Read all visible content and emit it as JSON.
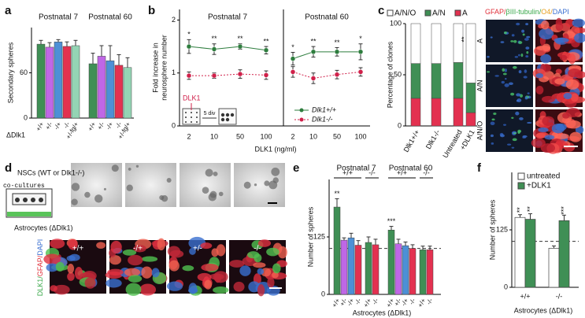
{
  "panel_labels": [
    "a",
    "b",
    "c",
    "d",
    "e",
    "f"
  ],
  "panel_c_images": {
    "stain": [
      "GFAP/",
      "βIII-tubulin/",
      "O4/",
      "DAPI"
    ],
    "rows": [
      "A",
      "A/N",
      "A/N/O"
    ]
  },
  "panel_d_images": {
    "nscs": "NSCs (WT or Dlk1-/-)",
    "coculture": "co-cultures",
    "astrocytes": "Astrocytes (ΔDlk1)",
    "genotypes": [
      "+/+",
      "-/+",
      "+/-",
      "-/-"
    ],
    "stain": [
      "DLK1/",
      "GFAP/",
      "DAPI"
    ]
  },
  "chart_data": [
    {
      "type": "bar",
      "ylabel": "Secondary spheres",
      "xlabel": "ΔDlk1",
      "groups": [
        "Postnatal 7",
        "Postnatal 60"
      ],
      "categories": [
        "+/+",
        "+/-",
        "-/+",
        "-/-",
        "+/-fg/+",
        "+/+",
        "+/-",
        "-/+",
        "-/-",
        "+/-fg/+"
      ],
      "values": [
        98,
        94,
        101,
        95,
        96,
        72,
        82,
        76,
        70,
        67
      ],
      "errors": [
        5,
        6,
        3,
        6,
        7,
        14,
        14,
        20,
        14,
        13
      ],
      "colors": [
        "#3f8f55",
        "#c067e6",
        "#4d90d6",
        "#e33150",
        "#94d4b4",
        "#3f8f55",
        "#c067e6",
        "#4d90d6",
        "#e33150",
        "#94d4b4"
      ],
      "ylim": [
        0,
        120
      ],
      "yticks": [
        0,
        60
      ]
    },
    {
      "type": "line",
      "ylabel": [
        "Fold increase in",
        "neurosphere number"
      ],
      "xlabel": "DLK1 (ng/ml)",
      "groups": [
        "Postnatal 7",
        "Postnatal 60"
      ],
      "categories": [
        "2",
        "10",
        "50",
        "100",
        "2",
        "10",
        "50",
        "100"
      ],
      "series": [
        {
          "name": "Dlk1+/+",
          "color": "#2e7d3e",
          "dashed": false,
          "values": [
            1.5,
            1.45,
            1.5,
            1.43,
            1.27,
            1.4,
            1.4,
            1.4
          ],
          "errors": [
            0.13,
            0.1,
            0.05,
            0.07,
            0.12,
            0.1,
            0.08,
            0.15
          ]
        },
        {
          "name": "Dlk1-/-",
          "color": "#d0204a",
          "dashed": true,
          "values": [
            0.95,
            0.95,
            0.98,
            0.96,
            1.02,
            0.9,
            0.97,
            1.02
          ],
          "errors": [
            0.07,
            0.05,
            0.08,
            0.08,
            0.1,
            0.1,
            0.08,
            0.08
          ]
        }
      ],
      "stars": [
        "*",
        "**",
        "**",
        "**",
        "*",
        "**",
        "**",
        "*"
      ],
      "annotations": [
        "DLK1",
        "5 div"
      ],
      "ylim": [
        0,
        2.2
      ],
      "yticks": [
        0,
        1,
        2
      ]
    },
    {
      "type": "stacked-bar",
      "ylabel": "Percentage of clones",
      "categories": [
        "Dlk1+/+",
        "Dlk1-/-",
        "Untreated",
        "+DLK1"
      ],
      "series": [
        {
          "name": "A/N/O",
          "color": "#ffffff",
          "values": [
            39,
            39,
            38,
            58
          ]
        },
        {
          "name": "A/N",
          "color": "#3f8f55",
          "values": [
            34,
            34,
            35,
            29
          ]
        },
        {
          "name": "A",
          "color": "#e33150",
          "values": [
            27,
            27,
            27,
            13
          ]
        }
      ],
      "annotation": "**",
      "ylim": [
        0,
        100
      ],
      "yticks": [
        0,
        50,
        100
      ]
    },
    {
      "type": "bar",
      "ylabel": "Number of spheres",
      "xlabel": "Astrocytes (ΔDlk1)",
      "groups": [
        "Postnatal 7",
        "Postnatal 60"
      ],
      "genotypes": [
        "+/+",
        "-/-",
        "+/+",
        "-/-"
      ],
      "categories": [
        "+/+",
        "+/-",
        "-/+",
        "-/-",
        "+/+",
        "-/-",
        "+/+",
        "+/-",
        "-/+",
        "-/-",
        "+/+",
        "-/-"
      ],
      "values": [
        190,
        118,
        123,
        107,
        113,
        108,
        140,
        110,
        106,
        100,
        97,
        97
      ],
      "errors": [
        18,
        5,
        10,
        10,
        12,
        12,
        8,
        10,
        8,
        8,
        8,
        8
      ],
      "stars": [
        "**",
        null,
        null,
        null,
        null,
        null,
        "***",
        null,
        null,
        null,
        null,
        null
      ],
      "colors": [
        "#3f8f55",
        "#c067e6",
        "#4d90d6",
        "#e33150",
        "#3f8f55",
        "#e33150",
        "#3f8f55",
        "#c067e6",
        "#4d90d6",
        "#e33150",
        "#3f8f55",
        "#e33150"
      ],
      "reference": 100,
      "ylim": [
        0,
        250
      ],
      "yticks": [
        0,
        125
      ]
    },
    {
      "type": "grouped-bar",
      "ylabel": "Number of spheres",
      "xlabel": "Astrocytes (ΔDlk1)",
      "categories": [
        "+/+",
        "-/-"
      ],
      "series": [
        {
          "name": "untreated",
          "color": "#ffffff",
          "values": [
            152,
            85
          ],
          "errors": [
            6,
            5
          ],
          "stars": [
            "**",
            null
          ]
        },
        {
          "name": "+DLK1",
          "color": "#3f8f55",
          "values": [
            148,
            145
          ],
          "errors": [
            12,
            12
          ],
          "stars": [
            "**",
            "***"
          ]
        }
      ],
      "reference": 100,
      "ylim": [
        0,
        250
      ],
      "yticks": [
        0,
        125
      ]
    }
  ]
}
